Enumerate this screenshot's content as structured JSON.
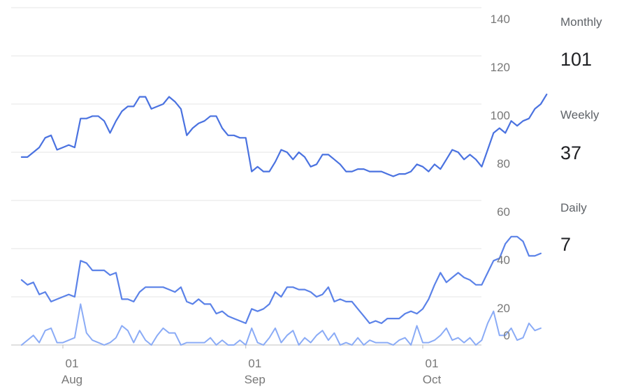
{
  "chart_data": {
    "type": "line",
    "x_start": "2024-07-25",
    "x_end": "2024-10-16",
    "ylim": [
      0,
      140
    ],
    "yticks": [
      "140",
      "120",
      "100",
      "80",
      "60",
      "40",
      "20",
      "0"
    ],
    "ytick_values": [
      140,
      120,
      100,
      80,
      60,
      40,
      20,
      0
    ],
    "xticks": [
      {
        "date": "2024-08-01",
        "day": "01",
        "month": "Aug"
      },
      {
        "date": "2024-09-01",
        "day": "01",
        "month": "Sep"
      },
      {
        "date": "2024-10-01",
        "day": "01",
        "month": "Oct"
      }
    ],
    "grid": true,
    "legend": "right",
    "series": [
      {
        "name": "Monthly",
        "color": "#4a72e0",
        "values": [
          [
            "2024-07-25",
            78
          ],
          [
            "2024-07-26",
            78
          ],
          [
            "2024-07-27",
            80
          ],
          [
            "2024-07-28",
            82
          ],
          [
            "2024-07-29",
            86
          ],
          [
            "2024-07-30",
            87
          ],
          [
            "2024-07-31",
            81
          ],
          [
            "2024-08-01",
            82
          ],
          [
            "2024-08-02",
            83
          ],
          [
            "2024-08-03",
            82
          ],
          [
            "2024-08-04",
            94
          ],
          [
            "2024-08-05",
            94
          ],
          [
            "2024-08-06",
            95
          ],
          [
            "2024-08-07",
            95
          ],
          [
            "2024-08-08",
            93
          ],
          [
            "2024-08-09",
            88
          ],
          [
            "2024-08-10",
            93
          ],
          [
            "2024-08-11",
            97
          ],
          [
            "2024-08-12",
            99
          ],
          [
            "2024-08-13",
            99
          ],
          [
            "2024-08-14",
            103
          ],
          [
            "2024-08-15",
            103
          ],
          [
            "2024-08-16",
            98
          ],
          [
            "2024-08-17",
            99
          ],
          [
            "2024-08-18",
            100
          ],
          [
            "2024-08-19",
            103
          ],
          [
            "2024-08-20",
            101
          ],
          [
            "2024-08-21",
            98
          ],
          [
            "2024-08-22",
            87
          ],
          [
            "2024-08-23",
            90
          ],
          [
            "2024-08-24",
            92
          ],
          [
            "2024-08-25",
            93
          ],
          [
            "2024-08-26",
            95
          ],
          [
            "2024-08-27",
            95
          ],
          [
            "2024-08-28",
            90
          ],
          [
            "2024-08-29",
            87
          ],
          [
            "2024-08-30",
            87
          ],
          [
            "2024-08-31",
            86
          ],
          [
            "2024-09-01",
            86
          ],
          [
            "2024-09-02",
            72
          ],
          [
            "2024-09-03",
            74
          ],
          [
            "2024-09-04",
            72
          ],
          [
            "2024-09-05",
            72
          ],
          [
            "2024-09-06",
            76
          ],
          [
            "2024-09-07",
            81
          ],
          [
            "2024-09-08",
            80
          ],
          [
            "2024-09-09",
            77
          ],
          [
            "2024-09-10",
            80
          ],
          [
            "2024-09-11",
            78
          ],
          [
            "2024-09-12",
            74
          ],
          [
            "2024-09-13",
            75
          ],
          [
            "2024-09-14",
            79
          ],
          [
            "2024-09-15",
            79
          ],
          [
            "2024-09-16",
            77
          ],
          [
            "2024-09-17",
            75
          ],
          [
            "2024-09-18",
            72
          ],
          [
            "2024-09-19",
            72
          ],
          [
            "2024-09-20",
            73
          ],
          [
            "2024-09-21",
            73
          ],
          [
            "2024-09-22",
            72
          ],
          [
            "2024-09-23",
            72
          ],
          [
            "2024-09-24",
            72
          ],
          [
            "2024-09-25",
            71
          ],
          [
            "2024-09-26",
            70
          ],
          [
            "2024-09-27",
            71
          ],
          [
            "2024-09-28",
            71
          ],
          [
            "2024-09-29",
            72
          ],
          [
            "2024-09-30",
            75
          ],
          [
            "2024-10-01",
            74
          ],
          [
            "2024-10-02",
            72
          ],
          [
            "2024-10-03",
            75
          ],
          [
            "2024-10-04",
            73
          ],
          [
            "2024-10-05",
            77
          ],
          [
            "2024-10-06",
            81
          ],
          [
            "2024-10-07",
            80
          ],
          [
            "2024-10-08",
            77
          ],
          [
            "2024-10-09",
            79
          ],
          [
            "2024-10-10",
            77
          ],
          [
            "2024-10-11",
            74
          ],
          [
            "2024-10-12",
            81
          ],
          [
            "2024-10-13",
            88
          ],
          [
            "2024-10-14",
            90
          ],
          [
            "2024-10-15",
            88
          ],
          [
            "2024-10-16",
            93
          ],
          [
            "2024-10-17",
            91
          ],
          [
            "2024-10-18",
            93
          ],
          [
            "2024-10-19",
            94
          ],
          [
            "2024-10-20",
            98
          ],
          [
            "2024-10-21",
            100
          ],
          [
            "2024-10-22",
            104
          ]
        ]
      },
      {
        "name": "Weekly",
        "color": "#5b82e8",
        "values": [
          [
            "2024-07-25",
            27
          ],
          [
            "2024-07-26",
            25
          ],
          [
            "2024-07-27",
            26
          ],
          [
            "2024-07-28",
            21
          ],
          [
            "2024-07-29",
            22
          ],
          [
            "2024-07-30",
            18
          ],
          [
            "2024-07-31",
            19
          ],
          [
            "2024-08-01",
            20
          ],
          [
            "2024-08-02",
            21
          ],
          [
            "2024-08-03",
            20
          ],
          [
            "2024-08-04",
            35
          ],
          [
            "2024-08-05",
            34
          ],
          [
            "2024-08-06",
            31
          ],
          [
            "2024-08-07",
            31
          ],
          [
            "2024-08-08",
            31
          ],
          [
            "2024-08-09",
            29
          ],
          [
            "2024-08-10",
            30
          ],
          [
            "2024-08-11",
            19
          ],
          [
            "2024-08-12",
            19
          ],
          [
            "2024-08-13",
            18
          ],
          [
            "2024-08-14",
            22
          ],
          [
            "2024-08-15",
            24
          ],
          [
            "2024-08-16",
            24
          ],
          [
            "2024-08-17",
            24
          ],
          [
            "2024-08-18",
            24
          ],
          [
            "2024-08-19",
            23
          ],
          [
            "2024-08-20",
            22
          ],
          [
            "2024-08-21",
            24
          ],
          [
            "2024-08-22",
            18
          ],
          [
            "2024-08-23",
            17
          ],
          [
            "2024-08-24",
            19
          ],
          [
            "2024-08-25",
            17
          ],
          [
            "2024-08-26",
            17
          ],
          [
            "2024-08-27",
            13
          ],
          [
            "2024-08-28",
            14
          ],
          [
            "2024-08-29",
            12
          ],
          [
            "2024-08-30",
            11
          ],
          [
            "2024-08-31",
            10
          ],
          [
            "2024-09-01",
            9
          ],
          [
            "2024-09-02",
            15
          ],
          [
            "2024-09-03",
            14
          ],
          [
            "2024-09-04",
            15
          ],
          [
            "2024-09-05",
            17
          ],
          [
            "2024-09-06",
            22
          ],
          [
            "2024-09-07",
            20
          ],
          [
            "2024-09-08",
            24
          ],
          [
            "2024-09-09",
            24
          ],
          [
            "2024-09-10",
            23
          ],
          [
            "2024-09-11",
            23
          ],
          [
            "2024-09-12",
            22
          ],
          [
            "2024-09-13",
            20
          ],
          [
            "2024-09-14",
            21
          ],
          [
            "2024-09-15",
            24
          ],
          [
            "2024-09-16",
            18
          ],
          [
            "2024-09-17",
            19
          ],
          [
            "2024-09-18",
            18
          ],
          [
            "2024-09-19",
            18
          ],
          [
            "2024-09-20",
            15
          ],
          [
            "2024-09-21",
            12
          ],
          [
            "2024-09-22",
            9
          ],
          [
            "2024-09-23",
            10
          ],
          [
            "2024-09-24",
            9
          ],
          [
            "2024-09-25",
            11
          ],
          [
            "2024-09-26",
            11
          ],
          [
            "2024-09-27",
            11
          ],
          [
            "2024-09-28",
            13
          ],
          [
            "2024-09-29",
            14
          ],
          [
            "2024-09-30",
            13
          ],
          [
            "2024-10-01",
            15
          ],
          [
            "2024-10-02",
            19
          ],
          [
            "2024-10-03",
            25
          ],
          [
            "2024-10-04",
            30
          ],
          [
            "2024-10-05",
            26
          ],
          [
            "2024-10-06",
            28
          ],
          [
            "2024-10-07",
            30
          ],
          [
            "2024-10-08",
            28
          ],
          [
            "2024-10-09",
            27
          ],
          [
            "2024-10-10",
            25
          ],
          [
            "2024-10-11",
            25
          ],
          [
            "2024-10-12",
            30
          ],
          [
            "2024-10-13",
            35
          ],
          [
            "2024-10-14",
            36
          ],
          [
            "2024-10-15",
            42
          ],
          [
            "2024-10-16",
            45
          ],
          [
            "2024-10-17",
            45
          ],
          [
            "2024-10-18",
            43
          ],
          [
            "2024-10-19",
            37
          ],
          [
            "2024-10-20",
            37
          ],
          [
            "2024-10-21",
            38
          ]
        ]
      },
      {
        "name": "Daily",
        "color": "#8aabf6",
        "values": [
          [
            "2024-07-25",
            0
          ],
          [
            "2024-07-26",
            2
          ],
          [
            "2024-07-27",
            4
          ],
          [
            "2024-07-28",
            1
          ],
          [
            "2024-07-29",
            6
          ],
          [
            "2024-07-30",
            7
          ],
          [
            "2024-07-31",
            1
          ],
          [
            "2024-08-01",
            1
          ],
          [
            "2024-08-02",
            2
          ],
          [
            "2024-08-03",
            3
          ],
          [
            "2024-08-04",
            17
          ],
          [
            "2024-08-05",
            5
          ],
          [
            "2024-08-06",
            2
          ],
          [
            "2024-08-07",
            1
          ],
          [
            "2024-08-08",
            0
          ],
          [
            "2024-08-09",
            1
          ],
          [
            "2024-08-10",
            3
          ],
          [
            "2024-08-11",
            8
          ],
          [
            "2024-08-12",
            6
          ],
          [
            "2024-08-13",
            1
          ],
          [
            "2024-08-14",
            6
          ],
          [
            "2024-08-15",
            2
          ],
          [
            "2024-08-16",
            0
          ],
          [
            "2024-08-17",
            4
          ],
          [
            "2024-08-18",
            7
          ],
          [
            "2024-08-19",
            5
          ],
          [
            "2024-08-20",
            5
          ],
          [
            "2024-08-21",
            0
          ],
          [
            "2024-08-22",
            1
          ],
          [
            "2024-08-23",
            1
          ],
          [
            "2024-08-24",
            1
          ],
          [
            "2024-08-25",
            1
          ],
          [
            "2024-08-26",
            3
          ],
          [
            "2024-08-27",
            0
          ],
          [
            "2024-08-28",
            2
          ],
          [
            "2024-08-29",
            0
          ],
          [
            "2024-08-30",
            0
          ],
          [
            "2024-08-31",
            2
          ],
          [
            "2024-09-01",
            0
          ],
          [
            "2024-09-02",
            7
          ],
          [
            "2024-09-03",
            1
          ],
          [
            "2024-09-04",
            0
          ],
          [
            "2024-09-05",
            3
          ],
          [
            "2024-09-06",
            7
          ],
          [
            "2024-09-07",
            1
          ],
          [
            "2024-09-08",
            4
          ],
          [
            "2024-09-09",
            6
          ],
          [
            "2024-09-10",
            0
          ],
          [
            "2024-09-11",
            3
          ],
          [
            "2024-09-12",
            1
          ],
          [
            "2024-09-13",
            4
          ],
          [
            "2024-09-14",
            6
          ],
          [
            "2024-09-15",
            2
          ],
          [
            "2024-09-16",
            5
          ],
          [
            "2024-09-17",
            0
          ],
          [
            "2024-09-18",
            1
          ],
          [
            "2024-09-19",
            0
          ],
          [
            "2024-09-20",
            3
          ],
          [
            "2024-09-21",
            0
          ],
          [
            "2024-09-22",
            2
          ],
          [
            "2024-09-23",
            1
          ],
          [
            "2024-09-24",
            1
          ],
          [
            "2024-09-25",
            1
          ],
          [
            "2024-09-26",
            0
          ],
          [
            "2024-09-27",
            2
          ],
          [
            "2024-09-28",
            3
          ],
          [
            "2024-09-29",
            0
          ],
          [
            "2024-09-30",
            8
          ],
          [
            "2024-10-01",
            1
          ],
          [
            "2024-10-02",
            1
          ],
          [
            "2024-10-03",
            2
          ],
          [
            "2024-10-04",
            4
          ],
          [
            "2024-10-05",
            7
          ],
          [
            "2024-10-06",
            2
          ],
          [
            "2024-10-07",
            3
          ],
          [
            "2024-10-08",
            1
          ],
          [
            "2024-10-09",
            3
          ],
          [
            "2024-10-10",
            0
          ],
          [
            "2024-10-11",
            2
          ],
          [
            "2024-10-12",
            9
          ],
          [
            "2024-10-13",
            14
          ],
          [
            "2024-10-14",
            4
          ],
          [
            "2024-10-15",
            4
          ],
          [
            "2024-10-16",
            7
          ],
          [
            "2024-10-17",
            2
          ],
          [
            "2024-10-18",
            3
          ],
          [
            "2024-10-19",
            9
          ],
          [
            "2024-10-20",
            6
          ],
          [
            "2024-10-21",
            7
          ]
        ]
      }
    ]
  },
  "stats": {
    "monthly_label": "Monthly",
    "monthly_value": "101",
    "weekly_label": "Weekly",
    "weekly_value": "37",
    "daily_label": "Daily",
    "daily_value": "7"
  }
}
